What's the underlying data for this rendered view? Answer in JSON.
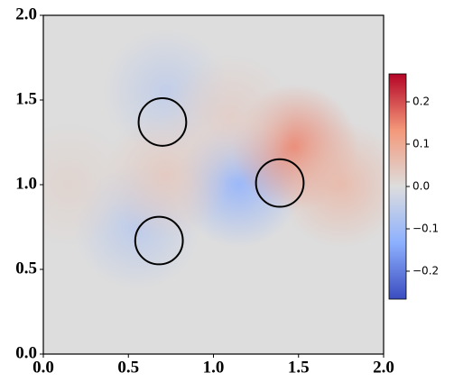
{
  "chart_data": {
    "type": "field",
    "xlim": [
      0,
      2
    ],
    "ylim": [
      0,
      2
    ],
    "xticks": [
      {
        "value": 0,
        "label": "0.0"
      },
      {
        "value": 0.5,
        "label": "0.5"
      },
      {
        "value": 1,
        "label": "1.0"
      },
      {
        "value": 1.5,
        "label": "1.5"
      },
      {
        "value": 2,
        "label": "2.0"
      }
    ],
    "yticks": [
      {
        "value": 0,
        "label": "0.0"
      },
      {
        "value": 0.5,
        "label": "0.5"
      },
      {
        "value": 1,
        "label": "1.0"
      },
      {
        "value": 1.5,
        "label": "1.5"
      },
      {
        "value": 2,
        "label": "2.0"
      }
    ],
    "circles": {
      "x": [
        0.7,
        0.68,
        1.39
      ],
      "y": [
        1.37,
        0.67,
        1.01
      ],
      "radius": [
        0.14,
        0.14,
        0.14
      ]
    },
    "field": {
      "x": [
        1.15,
        1.48,
        1.75,
        0.55,
        0.72,
        0.72,
        1.1,
        0.15
      ],
      "y": [
        1.0,
        1.22,
        1.0,
        0.75,
        1.55,
        1.05,
        1.4,
        1.0
      ],
      "values": [
        -0.12,
        0.15,
        0.07,
        -0.06,
        -0.05,
        0.04,
        0.03,
        0.02
      ]
    },
    "colormap": "coolwarm",
    "clim": [
      -0.266,
      0.266
    ],
    "cticks": [
      {
        "value": -0.2,
        "label": "−0.2"
      },
      {
        "value": -0.1,
        "label": "−0.1"
      },
      {
        "value": 0,
        "label": "0.0"
      },
      {
        "value": 0.1,
        "label": "0.1"
      },
      {
        "value": 0.2,
        "label": "0.2"
      }
    ]
  }
}
